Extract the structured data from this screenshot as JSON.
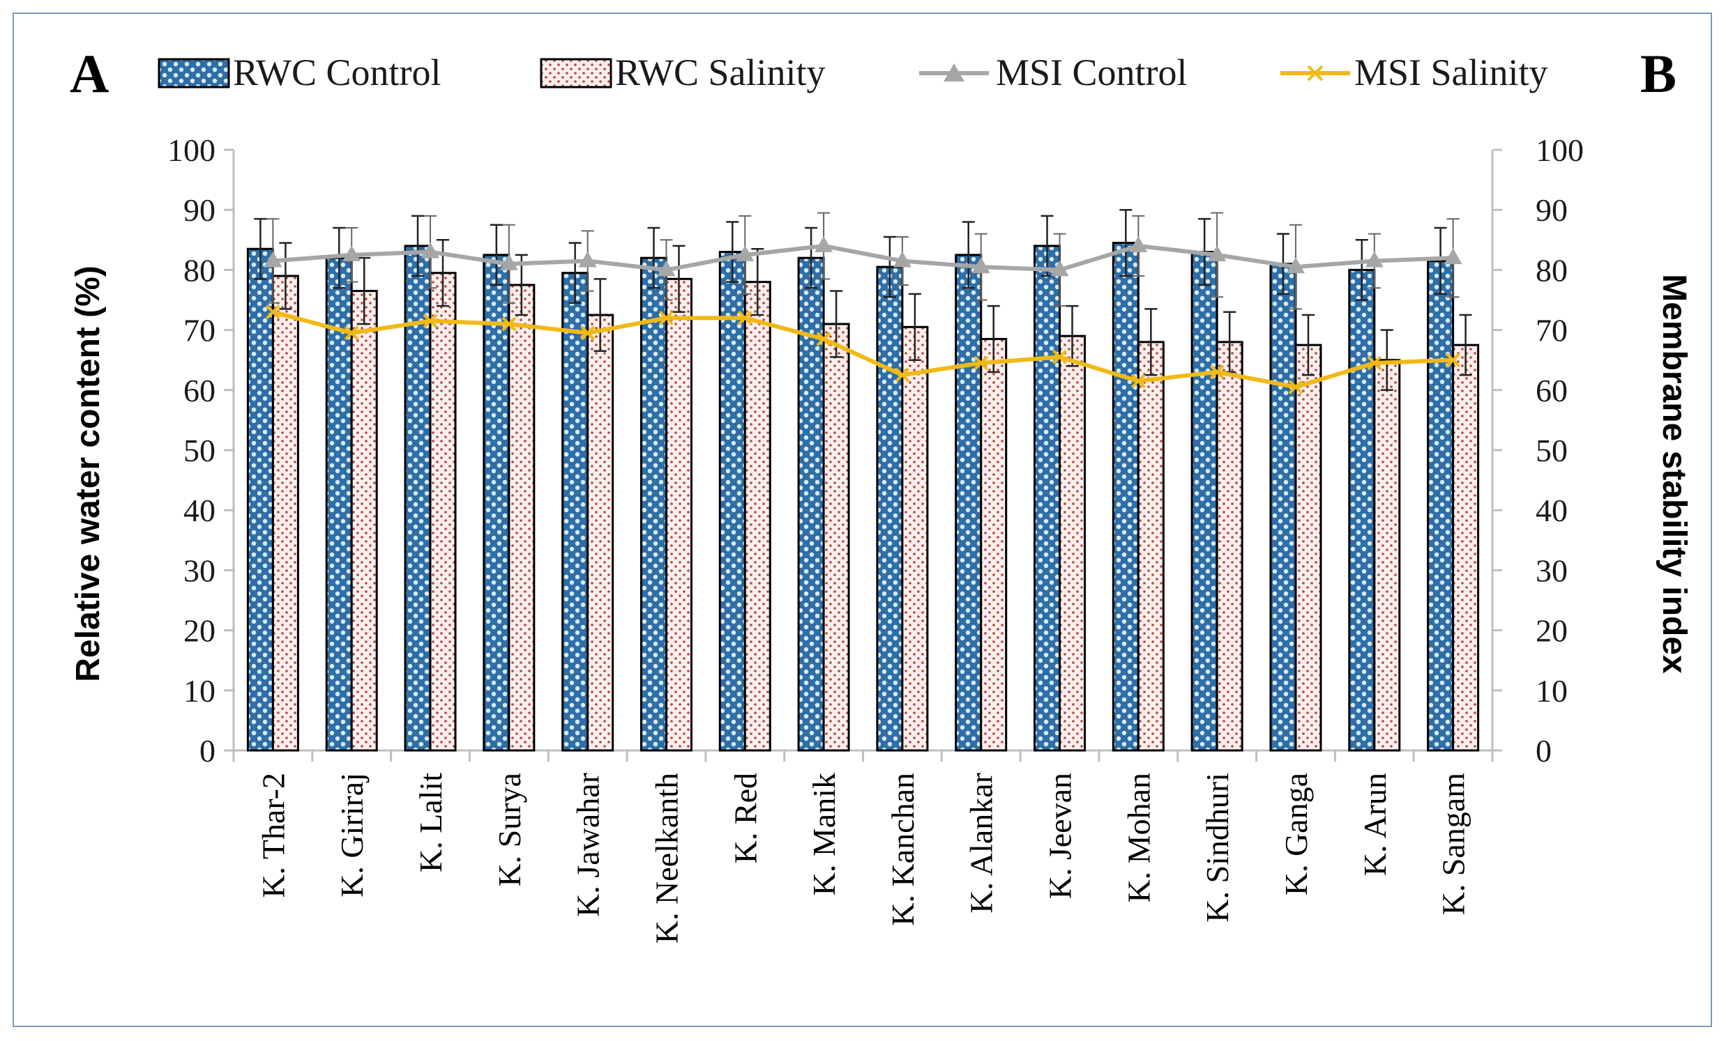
{
  "chart_data": {
    "type": "bar",
    "panels": [
      "A",
      "B"
    ],
    "categories": [
      "K. Thar-2",
      "K. Giriraj",
      "K. Lalit",
      "K. Surya",
      "K. Jawahar",
      "K. Neelkanth",
      "K. Red",
      "K. Manik",
      "K. Kanchan",
      "K. Alankar",
      "K. Jeevan",
      "K. Mohan",
      "K. Sindhuri",
      "K. Ganga",
      "K. Arun",
      "K. Sangam"
    ],
    "series": [
      {
        "name": "RWC Control",
        "kind": "bar",
        "axis": "left",
        "color": "#2f6ea6",
        "values": [
          83.5,
          82.0,
          84.0,
          82.5,
          79.5,
          82.0,
          83.0,
          82.0,
          80.5,
          82.5,
          84.0,
          84.5,
          83.0,
          81.0,
          80.0,
          81.5
        ],
        "errors": [
          5.0,
          5.0,
          5.0,
          5.0,
          5.0,
          5.0,
          5.0,
          5.0,
          5.0,
          5.5,
          5.0,
          5.5,
          5.5,
          5.0,
          5.0,
          5.5
        ]
      },
      {
        "name": "RWC Salinity",
        "kind": "bar",
        "axis": "left",
        "color": "#b04a3a",
        "values": [
          79.0,
          76.5,
          79.5,
          77.5,
          72.5,
          78.5,
          78.0,
          71.0,
          70.5,
          68.5,
          69.0,
          68.0,
          68.0,
          67.5,
          65.0,
          67.5
        ],
        "errors": [
          5.5,
          5.5,
          5.5,
          5.0,
          6.0,
          5.5,
          5.5,
          5.5,
          5.5,
          5.5,
          5.0,
          5.5,
          5.0,
          5.0,
          5.0,
          5.0
        ]
      },
      {
        "name": "MSI Control",
        "kind": "line",
        "axis": "right",
        "color": "#a6a6a6",
        "marker": "triangle",
        "values": [
          81.5,
          82.5,
          83.0,
          81.0,
          81.5,
          80.0,
          82.5,
          84.0,
          81.5,
          80.5,
          80.0,
          84.0,
          82.5,
          80.5,
          81.5,
          82.0
        ],
        "errors": [
          7.0,
          4.5,
          6.0,
          6.5,
          5.0,
          5.0,
          6.5,
          5.5,
          4.0,
          5.5,
          6.0,
          5.0,
          7.0,
          7.0,
          4.5,
          6.5
        ]
      },
      {
        "name": "MSI Salinity",
        "kind": "line",
        "axis": "right",
        "color": "#f0b915",
        "marker": "x",
        "values": [
          73.0,
          69.5,
          71.5,
          71.0,
          69.5,
          72.0,
          72.0,
          68.5,
          62.5,
          64.5,
          65.5,
          61.5,
          63.0,
          60.5,
          64.5,
          65.0
        ],
        "errors": [
          0,
          0,
          0,
          0,
          0,
          0,
          0,
          0,
          0,
          0,
          0,
          0,
          0,
          0,
          0,
          0
        ]
      }
    ],
    "ylabel": "Relative water content (%)",
    "y2label": "Membrane stability index",
    "ylim": [
      0,
      100
    ],
    "y2lim": [
      0,
      100
    ],
    "yticks": [
      0,
      10,
      20,
      30,
      40,
      50,
      60,
      70,
      80,
      90,
      100
    ],
    "legend_position": "top"
  }
}
